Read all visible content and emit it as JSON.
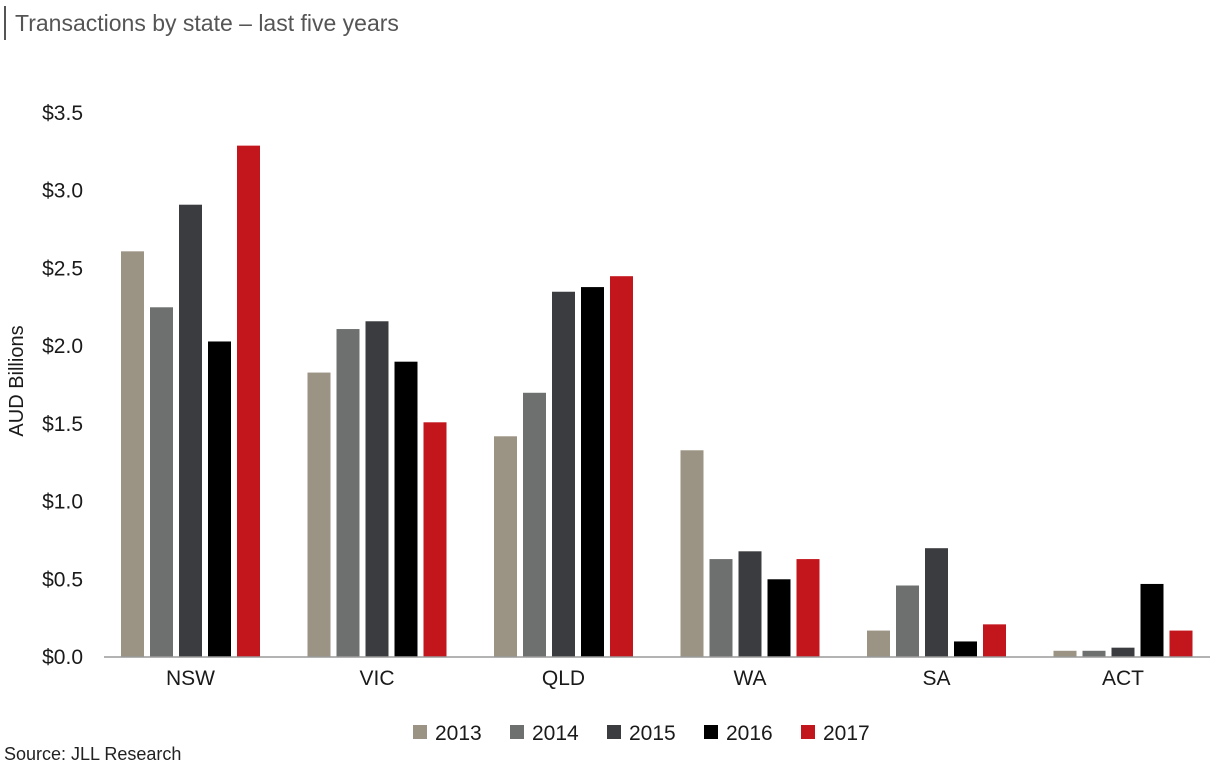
{
  "title": "Transactions by state – last five years",
  "source": "Source: JLL Research",
  "chart_data": {
    "type": "bar",
    "title": "Transactions by state – last five years",
    "xlabel": "",
    "ylabel": "AUD Billions",
    "ylim": [
      0,
      3.5
    ],
    "yticks": [
      0,
      0.5,
      1.0,
      1.5,
      2.0,
      2.5,
      3.0,
      3.5
    ],
    "ytick_labels": [
      "$0.0",
      "$0.5",
      "$1.0",
      "$1.5",
      "$2.0",
      "$2.5",
      "$3.0",
      "$3.5"
    ],
    "categories": [
      "NSW",
      "VIC",
      "QLD",
      "WA",
      "SA",
      "ACT"
    ],
    "series": [
      {
        "name": "2013",
        "color": "#9b9383",
        "values": [
          2.61,
          1.83,
          1.42,
          1.33,
          0.17,
          0.04
        ]
      },
      {
        "name": "2014",
        "color": "#6e706f",
        "values": [
          2.25,
          2.11,
          1.7,
          0.63,
          0.46,
          0.04
        ]
      },
      {
        "name": "2015",
        "color": "#3b3c3f",
        "values": [
          2.91,
          2.16,
          2.35,
          0.68,
          0.7,
          0.06
        ]
      },
      {
        "name": "2016",
        "color": "#000000",
        "values": [
          2.03,
          1.9,
          2.38,
          0.5,
          0.1,
          0.47
        ]
      },
      {
        "name": "2017",
        "color": "#c3151c",
        "values": [
          3.29,
          1.51,
          2.45,
          0.63,
          0.21,
          0.17
        ]
      }
    ],
    "grid": false,
    "legend_position": "bottom-center"
  }
}
